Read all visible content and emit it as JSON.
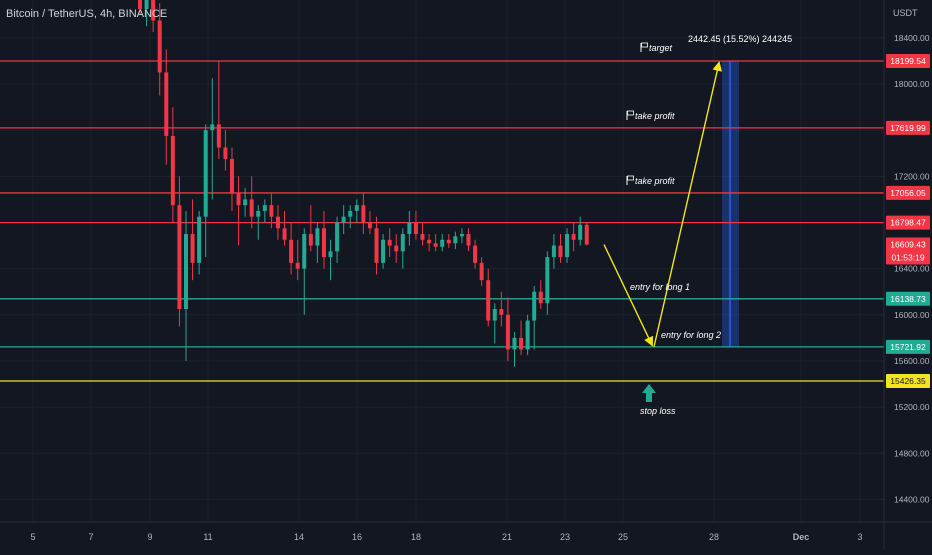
{
  "symbol_title": "Bitcoin / TetherUS, 4h, BINANCE",
  "currency": "USDT",
  "chart_data": {
    "type": "candlestick",
    "title": "Bitcoin / TetherUS, 4h, BINANCE",
    "ylabel": "USDT",
    "ylim": [
      14100,
      18850
    ],
    "grid": true,
    "y_ticks": [
      "14400.00",
      "14800.00",
      "15200.00",
      "15600.00",
      "16000.00",
      "16400.00",
      "16800.00",
      "17200.00",
      "17600.00",
      "18000.00",
      "18400.00"
    ],
    "x_ticks": [
      "5",
      "7",
      "9",
      "11",
      "14",
      "16",
      "18",
      "21",
      "23",
      "25",
      "28",
      "Dec",
      "3"
    ],
    "levels": [
      {
        "price": 18199.54,
        "label": "18199.54",
        "color": "#f23645",
        "note": "target"
      },
      {
        "price": 17619.99,
        "label": "17619.99",
        "color": "#f23645",
        "note": "take profit"
      },
      {
        "price": 17056.05,
        "label": "17056.05",
        "color": "#f23645",
        "note": "take profit"
      },
      {
        "price": 16798.47,
        "label": "16798.47",
        "color": "#f23645",
        "note": ""
      },
      {
        "price": 16138.73,
        "label": "16138.73",
        "color": "#22ab94",
        "note": ""
      },
      {
        "price": 15721.92,
        "label": "15721.92",
        "color": "#22ab94",
        "note": ""
      },
      {
        "price": 15426.35,
        "label": "15426.35",
        "color": "#f2e51c",
        "note": ""
      }
    ],
    "current_price": {
      "label": "16609.43",
      "countdown": "01:53:19",
      "color": "#f23645"
    },
    "annotations": {
      "target": "target",
      "take_profit_1": "take profit",
      "take_profit_2": "take profit",
      "entry_long_1": "entry for long 1",
      "entry_long_2": "entry for long 2",
      "stop_loss": "stop loss",
      "measure": "2442.45 (15.52%) 244245"
    },
    "projection": [
      {
        "date": "Nov 24",
        "price": 16609
      },
      {
        "date": "Nov 25",
        "price": 15721.92
      },
      {
        "date": "Nov 28",
        "price": 18199.54
      }
    ],
    "candles": [
      {
        "o": 19150,
        "h": 19300,
        "l": 18600,
        "c": 18650
      },
      {
        "o": 18650,
        "h": 18900,
        "l": 18500,
        "c": 18800
      },
      {
        "o": 18800,
        "h": 18850,
        "l": 18450,
        "c": 18550
      },
      {
        "o": 18550,
        "h": 18700,
        "l": 17900,
        "c": 18100
      },
      {
        "o": 18100,
        "h": 18300,
        "l": 17300,
        "c": 17550
      },
      {
        "o": 17550,
        "h": 17800,
        "l": 16800,
        "c": 16950
      },
      {
        "o": 16950,
        "h": 17200,
        "l": 15900,
        "c": 16050
      },
      {
        "o": 16050,
        "h": 16900,
        "l": 15600,
        "c": 16700
      },
      {
        "o": 16700,
        "h": 17000,
        "l": 16300,
        "c": 16450
      },
      {
        "o": 16450,
        "h": 16900,
        "l": 16350,
        "c": 16850
      },
      {
        "o": 16850,
        "h": 17650,
        "l": 16500,
        "c": 17600
      },
      {
        "o": 17600,
        "h": 18050,
        "l": 17000,
        "c": 17650
      },
      {
        "o": 17650,
        "h": 18200,
        "l": 17350,
        "c": 17450
      },
      {
        "o": 17450,
        "h": 17600,
        "l": 17250,
        "c": 17350
      },
      {
        "o": 17350,
        "h": 17450,
        "l": 16900,
        "c": 17050
      },
      {
        "o": 17050,
        "h": 17200,
        "l": 16600,
        "c": 16950
      },
      {
        "o": 16950,
        "h": 17100,
        "l": 16850,
        "c": 17000
      },
      {
        "o": 17000,
        "h": 17200,
        "l": 16750,
        "c": 16850
      },
      {
        "o": 16850,
        "h": 16950,
        "l": 16650,
        "c": 16900
      },
      {
        "o": 16900,
        "h": 17000,
        "l": 16800,
        "c": 16950
      },
      {
        "o": 16950,
        "h": 17050,
        "l": 16750,
        "c": 16850
      },
      {
        "o": 16850,
        "h": 16950,
        "l": 16650,
        "c": 16750
      },
      {
        "o": 16750,
        "h": 16900,
        "l": 16600,
        "c": 16650
      },
      {
        "o": 16650,
        "h": 16800,
        "l": 16350,
        "c": 16450
      },
      {
        "o": 16450,
        "h": 16650,
        "l": 16300,
        "c": 16400
      },
      {
        "o": 16400,
        "h": 16750,
        "l": 16000,
        "c": 16700
      },
      {
        "o": 16700,
        "h": 16950,
        "l": 16550,
        "c": 16600
      },
      {
        "o": 16600,
        "h": 16800,
        "l": 16450,
        "c": 16750
      },
      {
        "o": 16750,
        "h": 16900,
        "l": 16400,
        "c": 16500
      },
      {
        "o": 16500,
        "h": 16650,
        "l": 16300,
        "c": 16550
      },
      {
        "o": 16550,
        "h": 16850,
        "l": 16450,
        "c": 16800
      },
      {
        "o": 16800,
        "h": 16950,
        "l": 16700,
        "c": 16850
      },
      {
        "o": 16850,
        "h": 16950,
        "l": 16750,
        "c": 16900
      },
      {
        "o": 16900,
        "h": 17000,
        "l": 16800,
        "c": 16950
      },
      {
        "o": 16950,
        "h": 17050,
        "l": 16700,
        "c": 16800
      },
      {
        "o": 16800,
        "h": 16900,
        "l": 16700,
        "c": 16750
      },
      {
        "o": 16750,
        "h": 16850,
        "l": 16350,
        "c": 16450
      },
      {
        "o": 16450,
        "h": 16700,
        "l": 16400,
        "c": 16650
      },
      {
        "o": 16650,
        "h": 16750,
        "l": 16500,
        "c": 16600
      },
      {
        "o": 16600,
        "h": 16700,
        "l": 16450,
        "c": 16550
      },
      {
        "o": 16550,
        "h": 16750,
        "l": 16400,
        "c": 16700
      },
      {
        "o": 16700,
        "h": 16900,
        "l": 16600,
        "c": 16800
      },
      {
        "o": 16800,
        "h": 16900,
        "l": 16650,
        "c": 16700
      },
      {
        "o": 16700,
        "h": 16800,
        "l": 16600,
        "c": 16650
      },
      {
        "o": 16650,
        "h": 16700,
        "l": 16550,
        "c": 16620
      },
      {
        "o": 16620,
        "h": 16700,
        "l": 16550,
        "c": 16590
      },
      {
        "o": 16590,
        "h": 16700,
        "l": 16550,
        "c": 16650
      },
      {
        "o": 16650,
        "h": 16700,
        "l": 16580,
        "c": 16620
      },
      {
        "o": 16620,
        "h": 16720,
        "l": 16570,
        "c": 16680
      },
      {
        "o": 16680,
        "h": 16750,
        "l": 16620,
        "c": 16700
      },
      {
        "o": 16700,
        "h": 16750,
        "l": 16550,
        "c": 16600
      },
      {
        "o": 16600,
        "h": 16650,
        "l": 16400,
        "c": 16450
      },
      {
        "o": 16450,
        "h": 16500,
        "l": 16250,
        "c": 16300
      },
      {
        "o": 16300,
        "h": 16400,
        "l": 15900,
        "c": 15950
      },
      {
        "o": 15950,
        "h": 16100,
        "l": 15750,
        "c": 16050
      },
      {
        "o": 16050,
        "h": 16200,
        "l": 15900,
        "c": 16000
      },
      {
        "o": 16000,
        "h": 16150,
        "l": 15600,
        "c": 15700
      },
      {
        "o": 15700,
        "h": 15850,
        "l": 15550,
        "c": 15800
      },
      {
        "o": 15800,
        "h": 15950,
        "l": 15650,
        "c": 15700
      },
      {
        "o": 15700,
        "h": 16000,
        "l": 15650,
        "c": 15950
      },
      {
        "o": 15950,
        "h": 16250,
        "l": 15700,
        "c": 16200
      },
      {
        "o": 16200,
        "h": 16300,
        "l": 16050,
        "c": 16100
      },
      {
        "o": 16100,
        "h": 16550,
        "l": 16000,
        "c": 16500
      },
      {
        "o": 16500,
        "h": 16700,
        "l": 16400,
        "c": 16600
      },
      {
        "o": 16600,
        "h": 16700,
        "l": 16450,
        "c": 16500
      },
      {
        "o": 16500,
        "h": 16750,
        "l": 16450,
        "c": 16700
      },
      {
        "o": 16700,
        "h": 16800,
        "l": 16550,
        "c": 16650
      },
      {
        "o": 16650,
        "h": 16850,
        "l": 16600,
        "c": 16780
      },
      {
        "o": 16780,
        "h": 16800,
        "l": 16600,
        "c": 16609
      }
    ]
  }
}
